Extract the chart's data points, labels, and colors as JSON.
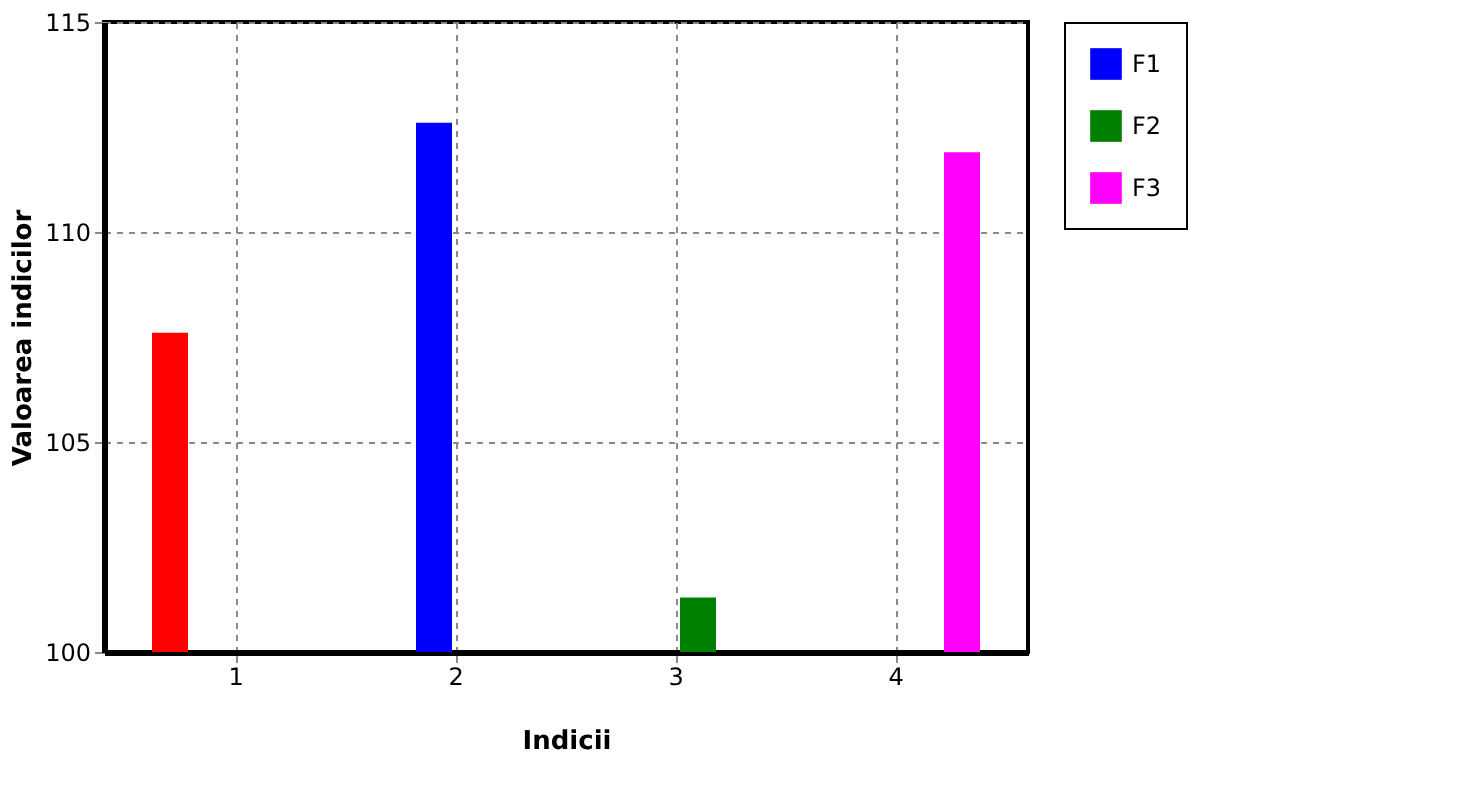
{
  "chart_data": {
    "type": "bar",
    "xlabel": "Indicii",
    "ylabel": "Valoarea indicilor",
    "categories": [
      "1",
      "2",
      "3",
      "4"
    ],
    "series": [
      {
        "color": "#ff0000",
        "values": [
          107.6,
          null,
          null,
          null
        ]
      },
      {
        "name": "F1",
        "color": "#0000ff",
        "values": [
          null,
          112.6,
          null,
          null
        ]
      },
      {
        "name": "F2",
        "color": "#008000",
        "values": [
          null,
          null,
          101.3,
          null
        ]
      },
      {
        "name": "F3",
        "color": "#ff00ff",
        "values": [
          null,
          null,
          null,
          111.9
        ]
      }
    ],
    "ylim": [
      100,
      115
    ],
    "yticks": [
      100,
      105,
      110,
      115
    ],
    "grid": true,
    "legend": "right"
  }
}
